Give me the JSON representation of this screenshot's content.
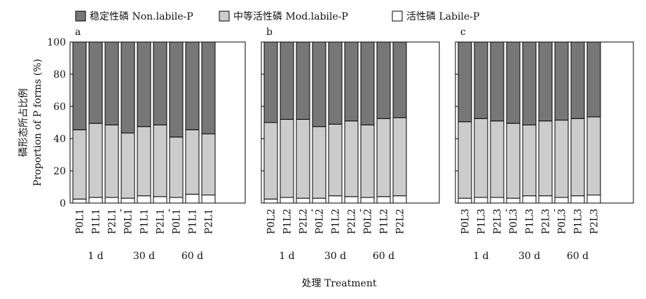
{
  "legend": [
    {
      "label": "稳定性磷 Non.labile-P",
      "color": "#777777"
    },
    {
      "label": "中等活性磷 Mod.labile-P",
      "color": "#cccccc"
    },
    {
      "label": "活性磷 Labile-P",
      "color": "#ffffff"
    }
  ],
  "ylabel_cn": "磷形态所占比例",
  "ylabel_en": "Proportion of P forms (%)",
  "xlabel": "处理 Treatment",
  "group_labels": [
    "1 d",
    "30 d",
    "60 d"
  ],
  "separator": "-",
  "y_ticks": [
    "0",
    "20",
    "40",
    "60",
    "80",
    "100"
  ],
  "chart_data": {
    "type": "bar",
    "stacked": true,
    "ylim": [
      0,
      100
    ],
    "series_order": [
      "Labile-P",
      "Mod.labile-P",
      "Non.labile-P"
    ],
    "panels": [
      {
        "label": "a",
        "groups": [
          {
            "name": "1 d",
            "categories": [
              "P0L1",
              "P1L1",
              "P2L1"
            ],
            "labile": [
              2.5,
              3.5,
              3.5
            ],
            "mod": [
              43,
              46,
              45
            ],
            "non": [
              54.5,
              50.5,
              51.5
            ]
          },
          {
            "name": "30 d",
            "categories": [
              "P0L1",
              "P1L1",
              "P2L1"
            ],
            "labile": [
              3,
              4.5,
              4
            ],
            "mod": [
              40.5,
              43,
              44.5
            ],
            "non": [
              56.5,
              52.5,
              51.5
            ]
          },
          {
            "name": "60 d",
            "categories": [
              "P0L1",
              "P1L1",
              "P2L1"
            ],
            "labile": [
              3.5,
              5.5,
              5
            ],
            "mod": [
              37.5,
              40,
              38
            ],
            "non": [
              59,
              54.5,
              57
            ]
          }
        ]
      },
      {
        "label": "b",
        "groups": [
          {
            "name": "1 d",
            "categories": [
              "P0L2",
              "P1L2",
              "P2L2"
            ],
            "labile": [
              2.5,
              3.5,
              3
            ],
            "mod": [
              47.5,
              48.5,
              49
            ],
            "non": [
              50,
              48,
              48
            ]
          },
          {
            "name": "30 d",
            "categories": [
              "P0L2",
              "P1L2",
              "P2L2"
            ],
            "labile": [
              3,
              4.5,
              4
            ],
            "mod": [
              44.5,
              44.5,
              47
            ],
            "non": [
              52.5,
              51,
              49
            ]
          },
          {
            "name": "60 d",
            "categories": [
              "P0L2",
              "P1L2",
              "P2L2"
            ],
            "labile": [
              3.5,
              4,
              4.5
            ],
            "mod": [
              45,
              48.5,
              48.5
            ],
            "non": [
              51.5,
              47.5,
              47
            ]
          }
        ]
      },
      {
        "label": "c",
        "groups": [
          {
            "name": "1 d",
            "categories": [
              "P0L3",
              "P1L3",
              "P2L3"
            ],
            "labile": [
              3,
              3.5,
              3.5
            ],
            "mod": [
              47.5,
              49,
              47.5
            ],
            "non": [
              49.5,
              47.5,
              49
            ]
          },
          {
            "name": "30 d",
            "categories": [
              "P0L3",
              "P1L3",
              "P2L3"
            ],
            "labile": [
              3,
              4.5,
              4.5
            ],
            "mod": [
              46.5,
              44,
              46.5
            ],
            "non": [
              50.5,
              51.5,
              49
            ]
          },
          {
            "name": "60 d",
            "categories": [
              "P0L3",
              "P1L3",
              "P2L3"
            ],
            "labile": [
              3.5,
              4.5,
              5
            ],
            "mod": [
              48,
              48,
              48.5
            ],
            "non": [
              48.5,
              47.5,
              46.5
            ]
          }
        ]
      }
    ]
  }
}
